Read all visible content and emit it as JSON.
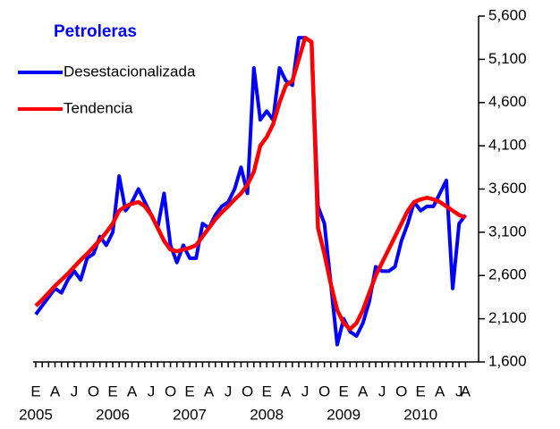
{
  "chart_data": {
    "type": "line",
    "title": "Petroleras",
    "categories": [
      "E",
      null,
      null,
      "A",
      null,
      null,
      "J",
      null,
      null,
      "O",
      null,
      null,
      "E",
      null,
      null,
      "A",
      null,
      null,
      "J",
      null,
      null,
      "O",
      null,
      null,
      "E",
      null,
      null,
      "A",
      null,
      null,
      "J",
      null,
      null,
      "O",
      null,
      null,
      "E",
      null,
      null,
      "A",
      null,
      null,
      "J",
      null,
      null,
      "O",
      null,
      null,
      "E",
      null,
      null,
      "A",
      null,
      null,
      "J",
      null,
      null,
      "O",
      null,
      null,
      "E",
      null,
      null,
      "A",
      null,
      null,
      "J",
      "A"
    ],
    "years": [
      "2005",
      "2006",
      "2007",
      "2008",
      "2009",
      "2010"
    ],
    "series": [
      {
        "name": "Desestacionalizada",
        "color": "#0000ff",
        "values": [
          2150,
          2250,
          2350,
          2450,
          2400,
          2550,
          2650,
          2550,
          2800,
          2850,
          3050,
          2950,
          3100,
          3750,
          3350,
          3450,
          3600,
          3450,
          3300,
          3150,
          3550,
          2950,
          2750,
          2950,
          2800,
          2800,
          3200,
          3150,
          3300,
          3400,
          3450,
          3600,
          3850,
          3550,
          5000,
          4400,
          4500,
          4400,
          5000,
          4850,
          4800,
          5350,
          5350,
          5300,
          3400,
          3200,
          2500,
          1800,
          2100,
          1950,
          1900,
          2050,
          2300,
          2700,
          2650,
          2650,
          2700,
          3000,
          3200,
          3450,
          3350,
          3400,
          3400,
          3550,
          3700,
          2450,
          3200,
          3300
        ]
      },
      {
        "name": "Tendencia",
        "color": "#ff0000",
        "values": [
          2250,
          2320,
          2400,
          2480,
          2550,
          2620,
          2700,
          2780,
          2850,
          2930,
          3010,
          3100,
          3200,
          3350,
          3400,
          3430,
          3450,
          3400,
          3300,
          3150,
          3000,
          2900,
          2880,
          2900,
          2920,
          2950,
          3050,
          3150,
          3250,
          3330,
          3400,
          3480,
          3550,
          3650,
          3800,
          4100,
          4200,
          4350,
          4600,
          4800,
          4850,
          5100,
          5350,
          5300,
          3150,
          2850,
          2500,
          2200,
          2050,
          1980,
          2050,
          2200,
          2400,
          2600,
          2750,
          2900,
          3050,
          3200,
          3350,
          3450,
          3480,
          3500,
          3480,
          3450,
          3400,
          3350,
          3300,
          3270
        ]
      }
    ],
    "ylim": [
      1600,
      5600
    ],
    "yticks": [
      {
        "value": 1600,
        "label": "1,600"
      },
      {
        "value": 2100,
        "label": "2,100"
      },
      {
        "value": 2600,
        "label": "2,600"
      },
      {
        "value": 3100,
        "label": "3,100"
      },
      {
        "value": 3600,
        "label": "3,600"
      },
      {
        "value": 4100,
        "label": "4,100"
      },
      {
        "value": 4600,
        "label": "4,600"
      },
      {
        "value": 5100,
        "label": "5,100"
      },
      {
        "value": 5600,
        "label": "5,600"
      }
    ],
    "grid": false,
    "legend": "upper left"
  }
}
